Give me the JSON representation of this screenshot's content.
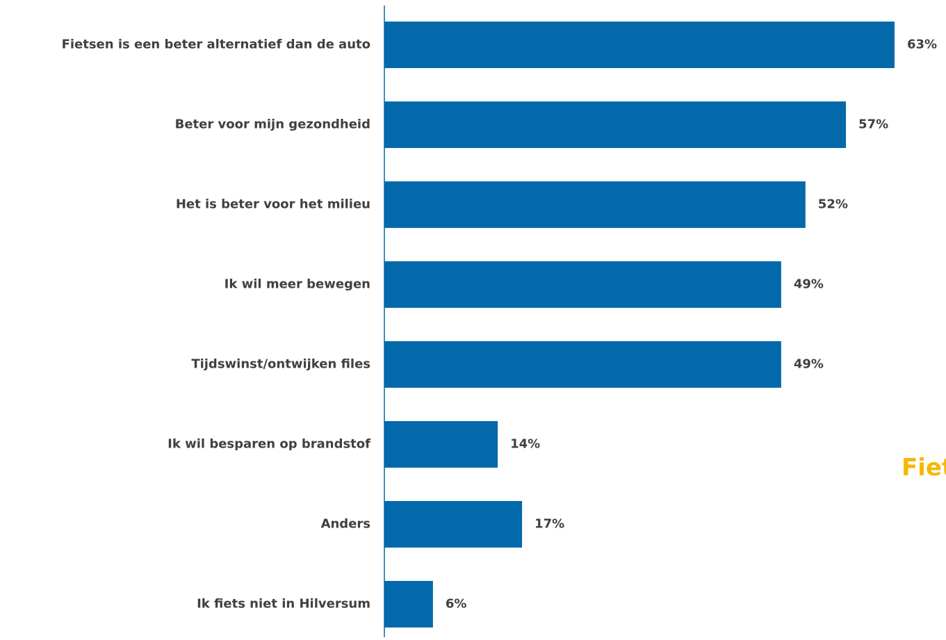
{
  "colors": {
    "bar": "#0369ab",
    "axis": "#0369ab",
    "label": "#404040",
    "side_text": "#f5b800"
  },
  "chart_data": {
    "type": "bar",
    "orientation": "horizontal",
    "categories": [
      "Fietsen is een beter alternatief dan de auto",
      "Beter voor mijn gezondheid",
      "Het is beter voor het milieu",
      "Ik wil meer bewegen",
      "Tijdswinst/ontwijken files",
      "Ik wil besparen op brandstof",
      "Anders",
      "Ik fiets niet in Hilversum"
    ],
    "values": [
      63,
      57,
      52,
      49,
      49,
      14,
      17,
      6
    ],
    "value_labels": [
      "63%",
      "57%",
      "52%",
      "49%",
      "49%",
      "14%",
      "17%",
      "6%"
    ],
    "unit": "%",
    "xlim": [
      0,
      70
    ],
    "grid": false,
    "legend": "none"
  },
  "side_text": "Fiets"
}
